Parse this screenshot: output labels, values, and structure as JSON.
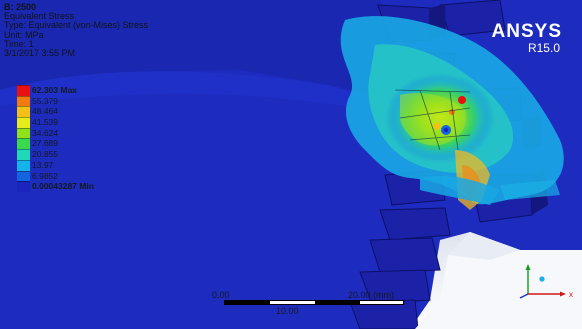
{
  "header": {
    "title": "B: 2500",
    "result": "Equivalent Stress",
    "type": "Type: Equivalent (von-Mises) Stress",
    "unit": "Unit: MPa",
    "time": "Time: 1",
    "date": "3/1/2017 3:55 PM"
  },
  "legend": [
    {
      "label": "62.303 Max",
      "color": "#e81010",
      "bold": true
    },
    {
      "label": "55.379",
      "color": "#f37a10",
      "bold": false
    },
    {
      "label": "48.464",
      "color": "#f2c016",
      "bold": false
    },
    {
      "label": "41.539",
      "color": "#e6ec1a",
      "bold": false
    },
    {
      "label": "34.624",
      "color": "#90e01a",
      "bold": false
    },
    {
      "label": "27.689",
      "color": "#3bd84e",
      "bold": false
    },
    {
      "label": "20.855",
      "color": "#20d8b8",
      "bold": false
    },
    {
      "label": "13.97",
      "color": "#16b2ea",
      "bold": false
    },
    {
      "label": "6.9852",
      "color": "#1463e0",
      "bold": false
    },
    {
      "label": "0.00043287 Min",
      "color": "#1b25bd",
      "bold": true
    }
  ],
  "logo": {
    "brand": "ANSYS",
    "version": "R15.0"
  },
  "scale_bar": {
    "left_label": "0.00",
    "right_label": "20.00 (mm)",
    "mid_label": "10.00"
  },
  "colors": {
    "background_contour": "#1d2bbf",
    "hot_spot": "#e81010",
    "text": "#101418"
  },
  "icons": {
    "axis_triad": "xyz-triad-icon"
  }
}
